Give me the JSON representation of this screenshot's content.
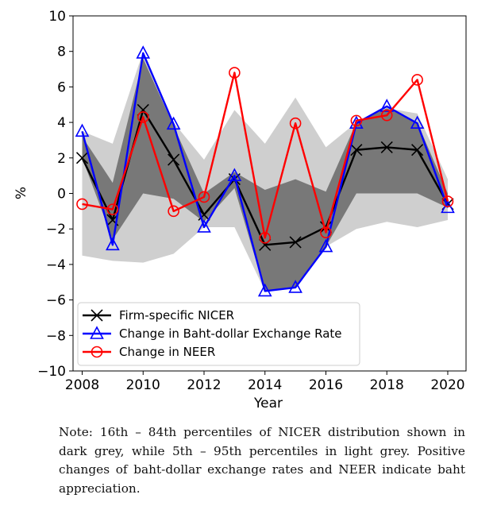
{
  "chart_data": {
    "type": "line",
    "xlabel": "Year",
    "ylabel": "%",
    "xlim": [
      2007.7,
      2020.6
    ],
    "ylim": [
      -10,
      10
    ],
    "x": [
      2008,
      2009,
      2010,
      2011,
      2012,
      2013,
      2014,
      2015,
      2016,
      2017,
      2018,
      2019,
      2020
    ],
    "x_ticks": [
      2008,
      2010,
      2012,
      2014,
      2016,
      2018,
      2020
    ],
    "y_ticks": [
      10,
      8,
      6,
      4,
      2,
      0,
      -2,
      -4,
      -6,
      -8,
      -10
    ],
    "legend_position": "lower-left",
    "bands": [
      {
        "name": "5th – 95th percentiles",
        "color": "#cfcfcf",
        "upper": [
          3.5,
          2.8,
          8.0,
          4.0,
          1.9,
          4.7,
          2.8,
          5.4,
          2.6,
          4.0,
          4.8,
          4.5,
          0.8
        ],
        "lower": [
          -3.5,
          -3.8,
          -3.9,
          -3.4,
          -1.9,
          -1.9,
          -5.5,
          -5.3,
          -3.0,
          -2.0,
          -1.6,
          -1.9,
          -1.5
        ]
      },
      {
        "name": "16th – 84th percentiles",
        "color": "#787878",
        "upper": [
          3.2,
          0.6,
          7.6,
          3.8,
          0.0,
          1.2,
          0.2,
          0.8,
          0.1,
          4.0,
          4.8,
          4.0,
          0.0
        ],
        "lower": [
          2.0,
          -2.6,
          0.0,
          -0.3,
          -1.6,
          0.3,
          -5.5,
          -5.3,
          -3.0,
          0.0,
          0.0,
          0.0,
          -0.8
        ]
      }
    ],
    "series": [
      {
        "name": "Firm-specific NICER",
        "color": "#000000",
        "marker": "x",
        "values": [
          2.0,
          -1.5,
          4.7,
          1.9,
          -1.2,
          0.8,
          -2.9,
          -2.75,
          -1.9,
          2.45,
          2.6,
          2.45,
          -0.6
        ]
      },
      {
        "name": "Change in Baht-dollar Exchange Rate",
        "color": "#0000ff",
        "marker": "triangle",
        "values": [
          3.5,
          -2.9,
          7.9,
          3.9,
          -1.9,
          1.0,
          -5.5,
          -5.3,
          -3.0,
          3.95,
          4.9,
          3.95,
          -0.8
        ]
      },
      {
        "name": "Change in NEER",
        "color": "#ff0000",
        "marker": "circle",
        "values": [
          -0.6,
          -0.9,
          4.3,
          -1.0,
          -0.2,
          6.8,
          -2.5,
          3.95,
          -2.2,
          4.1,
          4.4,
          6.4,
          -0.45
        ]
      }
    ]
  },
  "note": "Note: 16th – 84th percentiles of NICER distribution shown in dark grey, while 5th – 95th percentiles in light grey. Positive changes of baht-dollar exchange rates and NEER indicate baht appreciation."
}
